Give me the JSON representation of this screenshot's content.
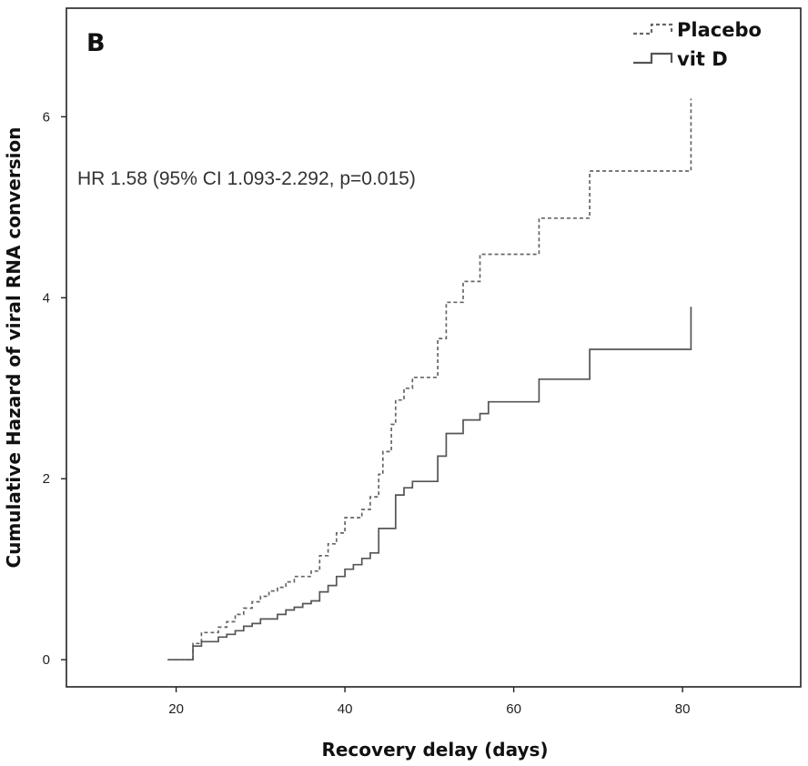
{
  "chart_data": {
    "type": "line",
    "panel_label": "B",
    "annotation": "HR 1.58 (95% CI 1.093-2.292, p=0.015)",
    "xlabel": "Recovery delay (days)",
    "ylabel": "Cumulative Hazard of viral RNA conversion",
    "xlim": [
      7,
      94
    ],
    "ylim": [
      -0.3,
      7.2
    ],
    "xticks": [
      20,
      40,
      60,
      80
    ],
    "yticks": [
      0,
      2,
      4,
      6
    ],
    "grid": false,
    "legend_position": "top-right",
    "series": [
      {
        "name": "Placebo",
        "style": "dashed",
        "color": "#666666",
        "points": [
          [
            19,
            0.0
          ],
          [
            22,
            0.0
          ],
          [
            22,
            0.18
          ],
          [
            23,
            0.18
          ],
          [
            23,
            0.3
          ],
          [
            25,
            0.3
          ],
          [
            25,
            0.36
          ],
          [
            26,
            0.36
          ],
          [
            26,
            0.42
          ],
          [
            27,
            0.42
          ],
          [
            27,
            0.5
          ],
          [
            28,
            0.5
          ],
          [
            28,
            0.57
          ],
          [
            29,
            0.57
          ],
          [
            29,
            0.64
          ],
          [
            30,
            0.64
          ],
          [
            30,
            0.7
          ],
          [
            31,
            0.7
          ],
          [
            31,
            0.76
          ],
          [
            32,
            0.76
          ],
          [
            32,
            0.8
          ],
          [
            33,
            0.8
          ],
          [
            33,
            0.86
          ],
          [
            34,
            0.86
          ],
          [
            34,
            0.92
          ],
          [
            36,
            0.92
          ],
          [
            36,
            0.98
          ],
          [
            37,
            0.98
          ],
          [
            37,
            1.15
          ],
          [
            38,
            1.15
          ],
          [
            38,
            1.28
          ],
          [
            39,
            1.28
          ],
          [
            39,
            1.4
          ],
          [
            40,
            1.4
          ],
          [
            40,
            1.57
          ],
          [
            42,
            1.57
          ],
          [
            42,
            1.66
          ],
          [
            43,
            1.66
          ],
          [
            43,
            1.8
          ],
          [
            44,
            1.8
          ],
          [
            44,
            2.05
          ],
          [
            44.5,
            2.05
          ],
          [
            44.5,
            2.3
          ],
          [
            45.5,
            2.3
          ],
          [
            45.5,
            2.6
          ],
          [
            46,
            2.6
          ],
          [
            46,
            2.87
          ],
          [
            47,
            2.87
          ],
          [
            47,
            3.0
          ],
          [
            48,
            3.0
          ],
          [
            48,
            3.12
          ],
          [
            51,
            3.12
          ],
          [
            51,
            3.55
          ],
          [
            52,
            3.55
          ],
          [
            52,
            3.95
          ],
          [
            54,
            3.95
          ],
          [
            54,
            4.18
          ],
          [
            56,
            4.18
          ],
          [
            56,
            4.48
          ],
          [
            63,
            4.48
          ],
          [
            63,
            4.88
          ],
          [
            69,
            4.88
          ],
          [
            69,
            5.4
          ],
          [
            81,
            5.4
          ],
          [
            81,
            6.2
          ]
        ]
      },
      {
        "name": "vit D",
        "style": "solid",
        "color": "#555555",
        "points": [
          [
            19,
            0.0
          ],
          [
            22,
            0.0
          ],
          [
            22,
            0.15
          ],
          [
            23,
            0.15
          ],
          [
            23,
            0.2
          ],
          [
            25,
            0.2
          ],
          [
            25,
            0.25
          ],
          [
            26,
            0.25
          ],
          [
            26,
            0.28
          ],
          [
            27,
            0.28
          ],
          [
            27,
            0.32
          ],
          [
            28,
            0.32
          ],
          [
            28,
            0.37
          ],
          [
            29,
            0.37
          ],
          [
            29,
            0.4
          ],
          [
            30,
            0.4
          ],
          [
            30,
            0.45
          ],
          [
            32,
            0.45
          ],
          [
            32,
            0.5
          ],
          [
            33,
            0.5
          ],
          [
            33,
            0.55
          ],
          [
            34,
            0.55
          ],
          [
            34,
            0.58
          ],
          [
            35,
            0.58
          ],
          [
            35,
            0.62
          ],
          [
            36,
            0.62
          ],
          [
            36,
            0.65
          ],
          [
            37,
            0.65
          ],
          [
            37,
            0.75
          ],
          [
            38,
            0.75
          ],
          [
            38,
            0.82
          ],
          [
            39,
            0.82
          ],
          [
            39,
            0.92
          ],
          [
            40,
            0.92
          ],
          [
            40,
            1.0
          ],
          [
            41,
            1.0
          ],
          [
            41,
            1.05
          ],
          [
            42,
            1.05
          ],
          [
            42,
            1.12
          ],
          [
            43,
            1.12
          ],
          [
            43,
            1.18
          ],
          [
            44,
            1.18
          ],
          [
            44,
            1.45
          ],
          [
            46,
            1.45
          ],
          [
            46,
            1.82
          ],
          [
            47,
            1.82
          ],
          [
            47,
            1.9
          ],
          [
            48,
            1.9
          ],
          [
            48,
            1.97
          ],
          [
            51,
            1.97
          ],
          [
            51,
            2.25
          ],
          [
            52,
            2.25
          ],
          [
            52,
            2.5
          ],
          [
            54,
            2.5
          ],
          [
            54,
            2.65
          ],
          [
            56,
            2.65
          ],
          [
            56,
            2.72
          ],
          [
            57,
            2.72
          ],
          [
            57,
            2.85
          ],
          [
            63,
            2.85
          ],
          [
            63,
            3.1
          ],
          [
            69,
            3.1
          ],
          [
            69,
            3.43
          ],
          [
            81,
            3.43
          ],
          [
            81,
            3.9
          ]
        ]
      }
    ]
  }
}
